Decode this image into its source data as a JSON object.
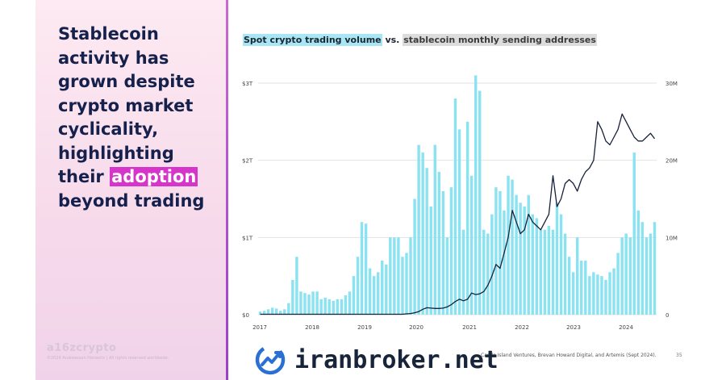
{
  "headline": {
    "part1": "Stablecoin activity has grown despite crypto market cyclicality, highlighting their ",
    "highlight": "adoption",
    "part2": " beyond trading"
  },
  "brand": "a16zcrypto",
  "legal": "©2024 Andreessen Horowitz  |  All rights reserved worldwide.",
  "title_part1": "Spot crypto trading volume",
  "title_part2": " vs. ",
  "title_part3": "stablecoin monthly sending addresses",
  "source": "Castle Island Ventures, Brevan Howard Digital, and Artemis (Sept 2024).",
  "page_number": "35",
  "watermark": {
    "text": "iranbroker.net",
    "icon": "chart-trend-logo-icon"
  },
  "colors": {
    "bars": "#8be3f2",
    "line": "#16213a",
    "accent": "#d536c9",
    "panel": "#f7dbeb"
  },
  "chart_data": {
    "type": "bar",
    "x_ticks": [
      "2017",
      "2018",
      "2019",
      "2020",
      "2021",
      "2022",
      "2023",
      "2024"
    ],
    "y_left_ticks": [
      "$0",
      "$1T",
      "$2T",
      "$3T"
    ],
    "y_right_ticks": [
      "0",
      "10M",
      "20M",
      "30M"
    ],
    "ylim_left": [
      0,
      3
    ],
    "ylim_right": [
      0,
      30
    ],
    "grid": true,
    "series": [
      {
        "unit": "trillion USD",
        "axis": "left",
        "values": [
          0.04,
          0.05,
          0.07,
          0.09,
          0.08,
          0.05,
          0.07,
          0.15,
          0.45,
          0.75,
          0.3,
          0.28,
          0.26,
          0.3,
          0.3,
          0.2,
          0.22,
          0.2,
          0.18,
          0.2,
          0.2,
          0.25,
          0.3,
          0.5,
          0.75,
          1.2,
          1.18,
          0.6,
          0.5,
          0.55,
          0.7,
          0.65,
          1.0,
          1.0,
          1.0,
          0.75,
          0.8,
          1.0,
          1.5,
          2.2,
          2.1,
          1.9,
          1.4,
          2.2,
          1.85,
          1.6,
          1.0,
          1.65,
          2.8,
          2.4,
          1.1,
          2.5,
          1.8,
          3.1,
          2.9,
          1.1,
          1.05,
          1.3,
          1.65,
          1.6,
          1.35,
          1.8,
          1.75,
          1.55,
          1.45,
          1.4,
          1.55,
          1.3,
          1.25,
          1.1,
          1.1,
          1.15,
          1.1,
          1.45,
          1.3,
          1.05,
          0.75,
          0.55,
          1.0,
          0.7,
          0.7,
          0.5,
          0.55,
          0.52,
          0.5,
          0.45,
          0.55,
          0.6,
          0.8,
          1.0,
          1.05,
          1.0,
          2.1,
          1.35,
          1.2,
          1.0,
          1.05,
          1.2
        ]
      },
      {
        "unit": "million addresses",
        "axis": "right",
        "values": [
          0.05,
          0.05,
          0.05,
          0.05,
          0.05,
          0.05,
          0.05,
          0.05,
          0.05,
          0.05,
          0.05,
          0.05,
          0.05,
          0.05,
          0.05,
          0.05,
          0.05,
          0.05,
          0.05,
          0.05,
          0.05,
          0.05,
          0.05,
          0.05,
          0.05,
          0.05,
          0.05,
          0.05,
          0.05,
          0.05,
          0.05,
          0.05,
          0.05,
          0.05,
          0.05,
          0.05,
          0.1,
          0.15,
          0.25,
          0.4,
          0.7,
          0.9,
          0.85,
          0.8,
          0.8,
          0.85,
          1.0,
          1.3,
          1.7,
          2.0,
          1.8,
          2.0,
          2.8,
          2.6,
          2.7,
          3.0,
          3.8,
          5.0,
          6.5,
          6.0,
          8.0,
          10.0,
          13.5,
          12.0,
          10.5,
          11.0,
          13.0,
          12.0,
          11.5,
          11.0,
          12.0,
          13.0,
          18.0,
          14.0,
          15.0,
          17.0,
          17.5,
          17.0,
          16.0,
          17.5,
          18.5,
          19.0,
          20.0,
          25.0,
          24.0,
          22.5,
          22.0,
          23.0,
          24.0,
          26.0,
          25.0,
          24.0,
          23.0,
          22.5,
          22.5,
          23.0,
          23.5,
          22.8
        ]
      }
    ]
  }
}
